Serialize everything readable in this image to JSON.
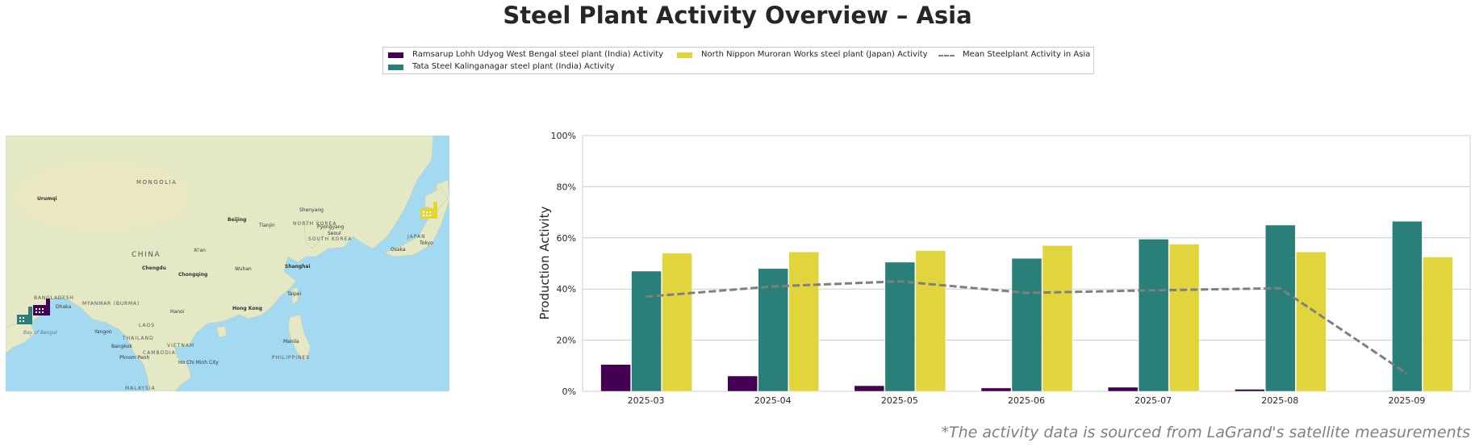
{
  "title": "Steel Plant Activity Overview – Asia",
  "footnote": "*The activity data is sourced from LaGrand's satellite measurements",
  "legend": [
    {
      "label": "Ramsarup Lohh Udyog West Bengal steel plant (India) Activity",
      "color": "#440154",
      "kind": "bar"
    },
    {
      "label": "Tata Steel Kalinganagar steel plant (India) Activity",
      "color": "#2a8079",
      "kind": "bar"
    },
    {
      "label": "North Nippon Muroran Works steel plant (Japan) Activity",
      "color": "#e2d43c",
      "kind": "bar"
    },
    {
      "label": "Mean Steelplant Activity in Asia",
      "color": "#7f7f7f",
      "kind": "line"
    }
  ],
  "map": {
    "labels": [
      {
        "text": "MONGOLIA",
        "kind": "country"
      },
      {
        "text": "CHINA",
        "kind": "country"
      },
      {
        "text": "NORTH KOREA",
        "kind": "country"
      },
      {
        "text": "SOUTH KOREA",
        "kind": "country"
      },
      {
        "text": "JAPAN",
        "kind": "country"
      },
      {
        "text": "MYANMAR (BURMA)",
        "kind": "country"
      },
      {
        "text": "BANGLADESH",
        "kind": "country"
      },
      {
        "text": "LAOS",
        "kind": "country"
      },
      {
        "text": "THAILAND",
        "kind": "country"
      },
      {
        "text": "CAMBODIA",
        "kind": "country"
      },
      {
        "text": "VIETNAM",
        "kind": "country"
      },
      {
        "text": "PHILIPPINES",
        "kind": "country"
      },
      {
        "text": "MALAYSIA",
        "kind": "country"
      },
      {
        "text": "Bay of Bengal",
        "kind": "water"
      },
      {
        "text": "Urumqi",
        "kind": "city"
      },
      {
        "text": "Beijing",
        "kind": "city"
      },
      {
        "text": "Tianjin",
        "kind": "city"
      },
      {
        "text": "Shenyang",
        "kind": "city"
      },
      {
        "text": "Pyongyang",
        "kind": "city"
      },
      {
        "text": "Seoul",
        "kind": "city"
      },
      {
        "text": "Osaka",
        "kind": "city"
      },
      {
        "text": "Tokyo",
        "kind": "city"
      },
      {
        "text": "Xi'an",
        "kind": "city"
      },
      {
        "text": "Wuhan",
        "kind": "city"
      },
      {
        "text": "Shanghai",
        "kind": "city"
      },
      {
        "text": "Chengdu",
        "kind": "city"
      },
      {
        "text": "Chongqing",
        "kind": "city"
      },
      {
        "text": "Taipei",
        "kind": "city"
      },
      {
        "text": "Hong Kong",
        "kind": "city"
      },
      {
        "text": "Hanoi",
        "kind": "city"
      },
      {
        "text": "Dhaka",
        "kind": "city"
      },
      {
        "text": "Yangon",
        "kind": "city"
      },
      {
        "text": "Bangkok",
        "kind": "city"
      },
      {
        "text": "Phnom Penh",
        "kind": "city"
      },
      {
        "text": "Ho Chi Minh City",
        "kind": "city"
      },
      {
        "text": "Manila",
        "kind": "city"
      }
    ]
  },
  "chart_data": {
    "type": "bar",
    "categories": [
      "2025-03",
      "2025-04",
      "2025-05",
      "2025-06",
      "2025-07",
      "2025-08",
      "2025-09"
    ],
    "series": [
      {
        "name": "Ramsarup Lohh Udyog West Bengal steel plant (India) Activity",
        "color": "#440154",
        "values": [
          10.5,
          6,
          2.2,
          1.3,
          1.6,
          0.8,
          0
        ]
      },
      {
        "name": "Tata Steel Kalinganagar steel plant (India) Activity",
        "color": "#2a8079",
        "values": [
          47,
          48,
          50.5,
          52,
          59.5,
          65,
          66.5
        ]
      },
      {
        "name": "North Nippon Muroran Works steel plant (Japan) Activity",
        "color": "#e2d43c",
        "values": [
          54,
          54.5,
          55,
          57,
          57.5,
          54.5,
          52.5
        ]
      }
    ],
    "line": {
      "name": "Mean Steelplant Activity in Asia",
      "color": "#7f7f7f",
      "style": "dashed",
      "values": [
        37,
        41,
        43,
        38.5,
        39.5,
        40.3,
        7
      ]
    },
    "ylabel": "Production Activity",
    "xlabel": "",
    "ylim": [
      0,
      100
    ],
    "yticks": [
      "0%",
      "20%",
      "40%",
      "60%",
      "80%",
      "100%"
    ],
    "grid": true
  }
}
